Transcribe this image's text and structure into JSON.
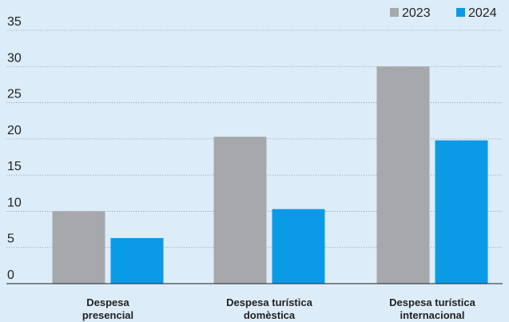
{
  "chart_data": {
    "type": "bar",
    "categories": [
      [
        "Despesa",
        "presencial"
      ],
      [
        "Despesa turística",
        "domèstica"
      ],
      [
        "Despesa turística",
        "internacional"
      ]
    ],
    "series": [
      {
        "name": "2023",
        "color": "#a6a8ab",
        "values": [
          10,
          20.3,
          30
        ]
      },
      {
        "name": "2024",
        "color": "#0a9ae6",
        "values": [
          6.3,
          10.3,
          19.8
        ]
      }
    ],
    "yticks": [
      0,
      5,
      10,
      15,
      20,
      25,
      30,
      35
    ],
    "ylim": [
      0,
      35
    ],
    "grid": true,
    "legend_position": "top-right"
  }
}
